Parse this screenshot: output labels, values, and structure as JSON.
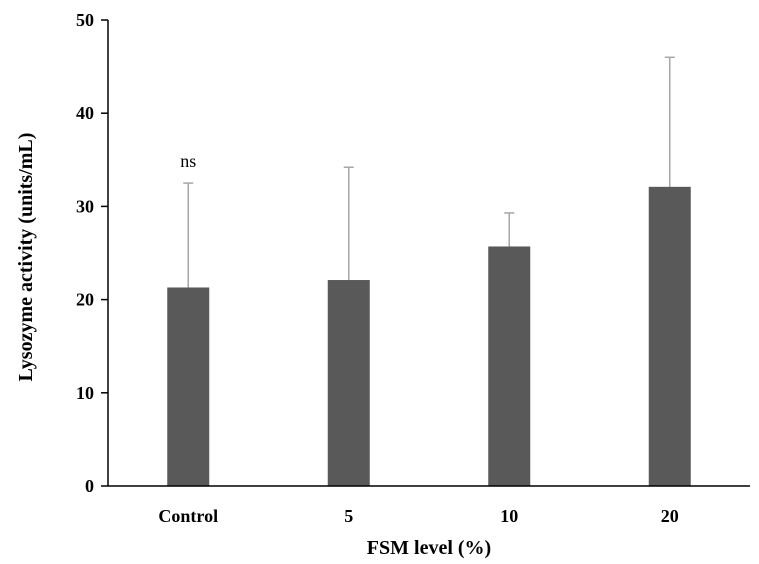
{
  "chart_data": {
    "type": "bar",
    "categories": [
      "Control",
      "5",
      "10",
      "20"
    ],
    "series": [
      {
        "values": [
          21.3,
          22.1,
          25.7,
          32.1
        ],
        "error_upper": [
          32.5,
          34.2,
          29.3,
          46.0
        ]
      }
    ],
    "xlabel": "FSM level (%)",
    "ylabel": "Lysozyme activity (units/mL)",
    "ylim": [
      0,
      50
    ],
    "yticks": [
      0,
      10,
      20,
      30,
      40,
      50
    ],
    "grid": false,
    "annotations": [
      {
        "category": "Control",
        "text": "ns"
      }
    ],
    "colors": {
      "bar": "#595959",
      "error_bar": "#a6a6a6",
      "axis": "#000000"
    }
  }
}
